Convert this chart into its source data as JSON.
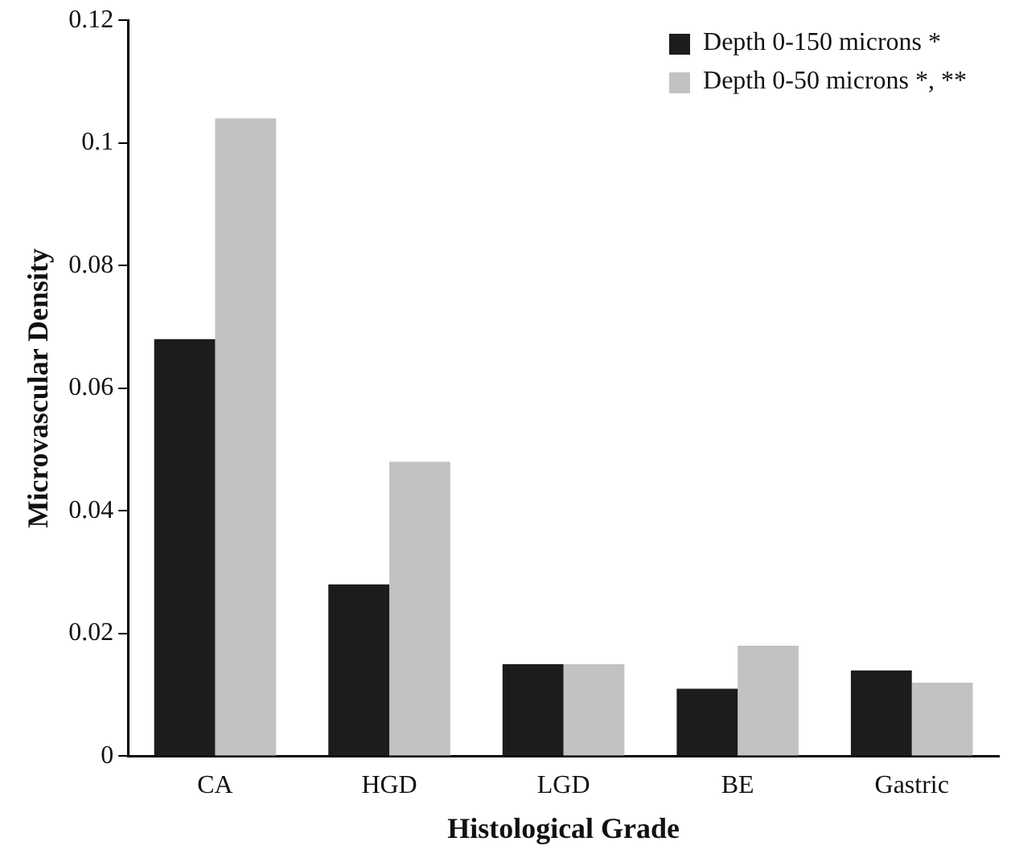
{
  "chart_data": {
    "type": "bar",
    "xlabel": "Histological Grade",
    "ylabel": "Microvascular Density",
    "categories": [
      "CA",
      "HGD",
      "LGD",
      "BE",
      "Gastric"
    ],
    "series": [
      {
        "name": "Depth 0-150 microns *",
        "color": "#1c1c1c",
        "values": [
          0.068,
          0.028,
          0.015,
          0.011,
          0.014
        ]
      },
      {
        "name": "Depth 0-50 microns *, **",
        "color": "#c2c2c2",
        "values": [
          0.104,
          0.048,
          0.015,
          0.018,
          0.012
        ]
      }
    ],
    "ylim": [
      0,
      0.12
    ],
    "yticks": [
      0,
      0.02,
      0.04,
      0.06,
      0.08,
      0.1,
      0.12
    ],
    "grid": false,
    "legend": "top right"
  }
}
